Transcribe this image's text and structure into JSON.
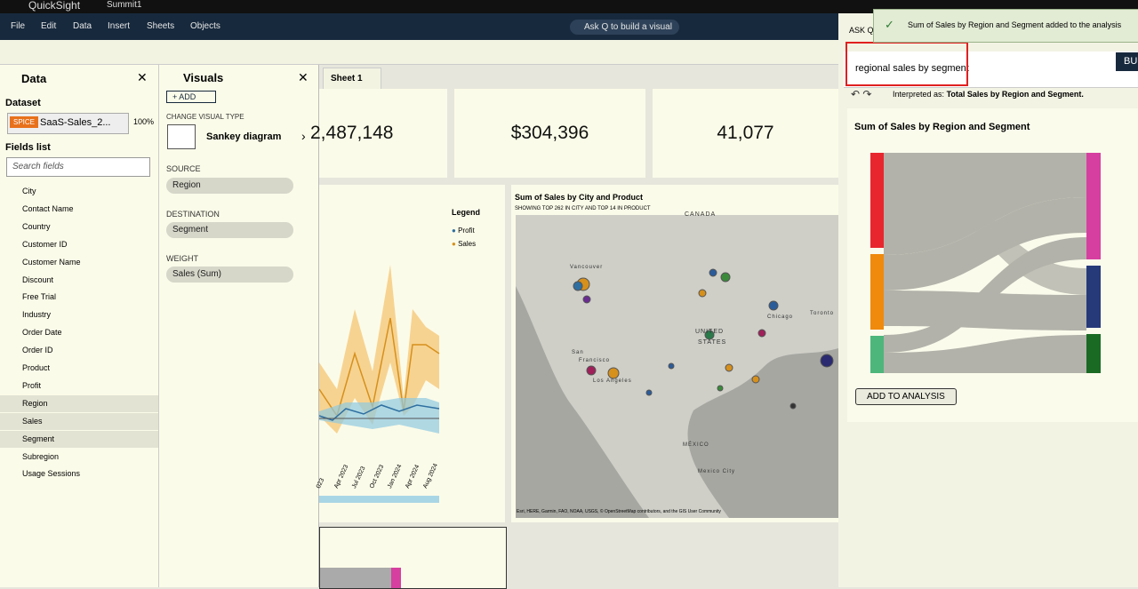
{
  "app": {
    "name": "QuickSight",
    "analysis": "Summit1"
  },
  "menu": [
    "File",
    "Edit",
    "Data",
    "Insert",
    "Sheets",
    "Objects"
  ],
  "ask_q_button": "Ask Q to build a visual",
  "data_panel": {
    "title": "Data",
    "dataset_label": "Dataset",
    "spice": "SPICE",
    "dataset": "SaaS-Sales_2...",
    "spice_pct": "100%",
    "fields_title": "Fields list",
    "search_placeholder": "Search fields",
    "fields": [
      "City",
      "Contact Name",
      "Country",
      "Customer ID",
      "Customer Name",
      "Discount",
      "Free Trial",
      "Industry",
      "Order Date",
      "Order ID",
      "Product",
      "Profit",
      "Region",
      "Sales",
      "Segment",
      "Subregion",
      "Usage Sessions"
    ]
  },
  "visuals_panel": {
    "title": "Visuals",
    "add": "+ ADD",
    "change_type": "CHANGE VISUAL TYPE",
    "visual_type": "Sankey diagram",
    "source_label": "SOURCE",
    "source": "Region",
    "destination_label": "DESTINATION",
    "destination": "Segment",
    "weight_label": "WEIGHT",
    "weight": "Sales (Sum)"
  },
  "sheet_tab": "Sheet 1",
  "kpis": [
    "2,487,148",
    "$304,396",
    "41,077"
  ],
  "line_chart": {
    "legend_title": "Legend",
    "legend": [
      "Profit",
      "Sales"
    ],
    "x_labels": [
      "023",
      "Apr 2023",
      "Jul 2023",
      "Oct 2023",
      "Jan 2024",
      "Apr 2024",
      "Aug 2024"
    ]
  },
  "map": {
    "title": "Sum of Sales by City and Product",
    "subtitle": "SHOWING TOP 262 IN CITY AND TOP 14 IN PRODUCT",
    "labels": [
      "CANADA",
      "UNITED",
      "STATES",
      "MÉXICO",
      "Vancouver",
      "San",
      "Francisco",
      "Los Angeles",
      "Chicago",
      "Toronto",
      "Mexico City"
    ],
    "attribution": "Esri, HERE, Garmin, FAO, NOAA, USGS, © OpenStreetMap contributors, and the GIS User Community"
  },
  "q_panel": {
    "header": "ASK Q",
    "toast": "Sum of Sales by Region and Segment added to the analysis",
    "query": "regional sales by segment",
    "build": "BU",
    "interpreted_prefix": "Interpreted as:",
    "interpreted": "Total Sales by Region and Segment.",
    "visual_title": "Sum of Sales by Region and Segment",
    "add_button": "ADD TO ANALYSIS"
  }
}
